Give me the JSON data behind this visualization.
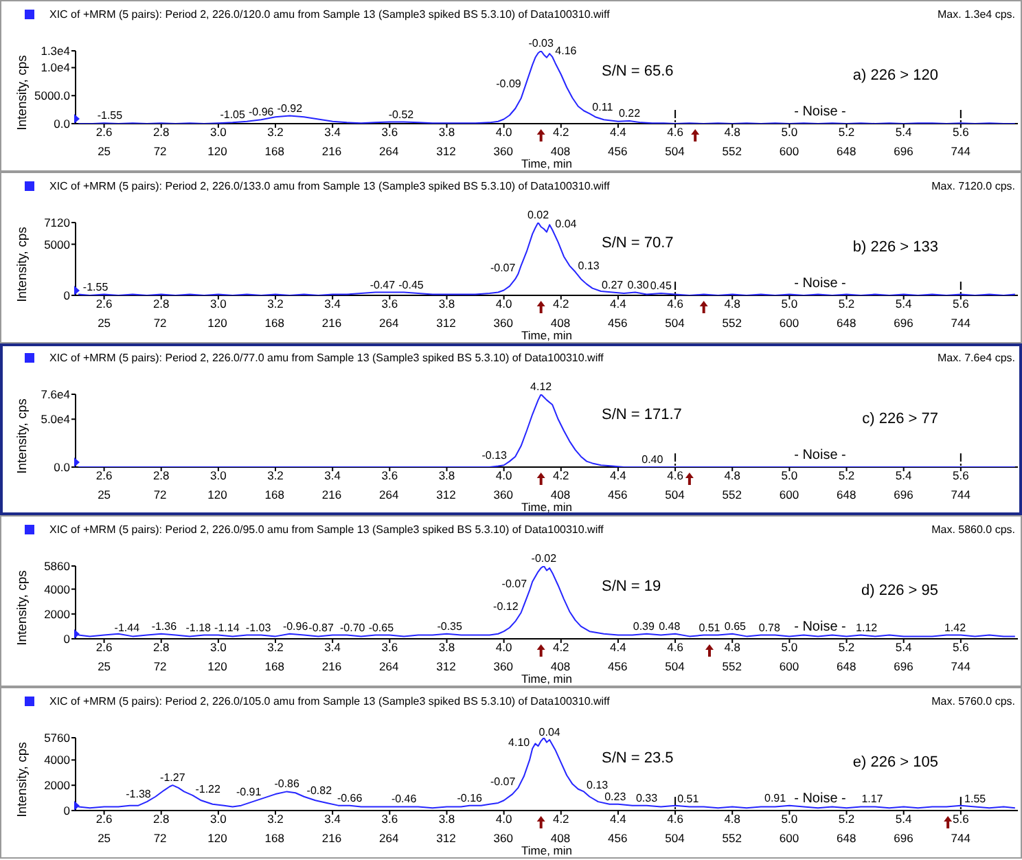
{
  "chart_data": [
    {
      "type": "line",
      "title": "XIC of +MRM (5 pairs): Period 2, 226.0/120.0 amu from Sample 13 (Sample3 spiked BS 5.3.10) of Data100310.wiff",
      "subtitle": "Max. 1.3e4 cps.",
      "xlabel": "Time, min",
      "ylabel": "Intensity, cps",
      "color": "#2626ff",
      "x": [
        2.51,
        2.56,
        2.6,
        2.65,
        2.7,
        2.75,
        2.8,
        2.85,
        2.9,
        2.95,
        3.0,
        3.05,
        3.1,
        3.15,
        3.2,
        3.25,
        3.3,
        3.35,
        3.4,
        3.45,
        3.5,
        3.55,
        3.6,
        3.65,
        3.7,
        3.75,
        3.8,
        3.85,
        3.9,
        3.95,
        3.98,
        4.0,
        4.02,
        4.04,
        4.06,
        4.07,
        4.08,
        4.1,
        4.11,
        4.12,
        4.13,
        4.14,
        4.15,
        4.16,
        4.17,
        4.18,
        4.2,
        4.22,
        4.24,
        4.26,
        4.28,
        4.3,
        4.32,
        4.35,
        4.4,
        4.44,
        4.48,
        4.52,
        4.56,
        4.6,
        4.65,
        4.7,
        4.75,
        4.8,
        4.85,
        4.9,
        4.95,
        5.0,
        5.05,
        5.1,
        5.15,
        5.2,
        5.25,
        5.3,
        5.35,
        5.4,
        5.45,
        5.5,
        5.55,
        5.6,
        5.65,
        5.7,
        5.75,
        5.79
      ],
      "values": [
        0,
        0,
        100,
        0,
        100,
        0,
        100,
        0,
        100,
        0,
        100,
        200,
        400,
        700,
        1200,
        1400,
        1200,
        800,
        400,
        200,
        100,
        200,
        300,
        300,
        200,
        100,
        100,
        100,
        100,
        200,
        400,
        800,
        1500,
        2700,
        4500,
        6000,
        7500,
        10500,
        11800,
        12600,
        13000,
        12300,
        11800,
        12500,
        11900,
        10800,
        8800,
        6500,
        4600,
        3100,
        2300,
        1800,
        1200,
        700,
        400,
        500,
        200,
        100,
        100,
        0,
        100,
        0,
        100,
        0,
        100,
        0,
        100,
        0,
        100,
        0,
        100,
        0,
        100,
        0,
        100,
        0,
        100,
        100,
        0,
        100,
        0,
        100,
        0,
        0
      ],
      "xlim": [
        2.5,
        5.8
      ],
      "xticks": [
        2.6,
        2.8,
        {
          "value": 3,
          "label": "3.0"
        },
        3.2,
        3.4,
        3.6,
        3.8,
        {
          "value": 4,
          "label": "4.0"
        },
        4.2,
        4.4,
        4.6,
        4.8,
        {
          "value": 5,
          "label": "5.0"
        },
        5.2,
        5.4,
        5.6
      ],
      "x2lim": [
        1,
        792
      ],
      "x2ticks": [
        25,
        72,
        120,
        168,
        216,
        264,
        312,
        360,
        408,
        456,
        504,
        552,
        600,
        648,
        696,
        744
      ],
      "ylim": [
        0,
        13000
      ],
      "yticks": [
        {
          "value": 0,
          "label": "0.0"
        },
        {
          "value": 5000,
          "label": "5000.0"
        },
        {
          "value": 10000,
          "label": "1.0e4"
        },
        {
          "value": 13000,
          "label": "1.3e4"
        }
      ],
      "annotations": [
        "S/N = 65.6",
        "a) 226 > 120",
        "- Noise -",
        {
          "text": "-1.55",
          "x": 2.62,
          "y": 100
        },
        {
          "text": "-1.05",
          "x": 3.05,
          "y": 200
        },
        {
          "text": "-0.96",
          "x": 3.15,
          "y": 700
        },
        {
          "text": "-0.92",
          "x": 3.25,
          "y": 1400
        },
        {
          "text": "-0.52",
          "x": 3.64,
          "y": 300
        },
        {
          "text": "-0.09",
          "x": 4.07,
          "y": 6000
        },
        {
          "text": "-0.03",
          "x": 4.13,
          "y": 13000
        },
        {
          "text": "4.16",
          "x": 4.17,
          "y": 11900
        },
        {
          "text": "0.11",
          "x": 4.3,
          "y": 1800
        },
        {
          "text": "0.22",
          "x": 4.44,
          "y": 500
        }
      ]
    },
    {
      "type": "line",
      "title": "XIC of +MRM (5 pairs): Period 2, 226.0/133.0 amu from Sample 13 (Sample3 spiked BS 5.3.10) of Data100310.wiff",
      "subtitle": "Max. 7120.0 cps.",
      "xlabel": "Time, min",
      "ylabel": "Intensity, cps",
      "color": "#2626ff",
      "x": [
        2.51,
        2.55,
        2.6,
        2.65,
        2.7,
        2.75,
        2.8,
        2.85,
        2.9,
        2.95,
        3.0,
        3.05,
        3.1,
        3.15,
        3.2,
        3.25,
        3.3,
        3.35,
        3.4,
        3.45,
        3.5,
        3.55,
        3.6,
        3.65,
        3.7,
        3.75,
        3.8,
        3.85,
        3.9,
        3.95,
        3.98,
        4.0,
        4.02,
        4.04,
        4.05,
        4.06,
        4.08,
        4.1,
        4.11,
        4.12,
        4.13,
        4.14,
        4.15,
        4.16,
        4.17,
        4.19,
        4.21,
        4.23,
        4.25,
        4.27,
        4.29,
        4.31,
        4.34,
        4.38,
        4.42,
        4.46,
        4.5,
        4.55,
        4.6,
        4.65,
        4.7,
        4.75,
        4.8,
        4.85,
        4.9,
        4.95,
        5.0,
        5.05,
        5.1,
        5.15,
        5.2,
        5.25,
        5.3,
        5.35,
        5.4,
        5.45,
        5.5,
        5.55,
        5.6,
        5.65,
        5.7,
        5.75,
        5.79
      ],
      "values": [
        100,
        0,
        100,
        0,
        100,
        0,
        100,
        0,
        100,
        0,
        100,
        0,
        100,
        0,
        100,
        0,
        100,
        0,
        100,
        100,
        200,
        300,
        300,
        300,
        200,
        100,
        100,
        100,
        100,
        200,
        300,
        500,
        900,
        1600,
        2100,
        2900,
        4300,
        6000,
        6600,
        7120,
        6700,
        6500,
        6200,
        6900,
        6400,
        5200,
        3800,
        2900,
        2300,
        1600,
        1100,
        700,
        400,
        300,
        200,
        300,
        100,
        200,
        100,
        0,
        100,
        0,
        100,
        0,
        100,
        0,
        100,
        0,
        100,
        0,
        100,
        0,
        100,
        0,
        100,
        0,
        100,
        0,
        100,
        0,
        100,
        0,
        100
      ],
      "xlim": [
        2.5,
        5.8
      ],
      "xticks": [
        2.6,
        2.8,
        {
          "value": 3,
          "label": "3.0"
        },
        3.2,
        3.4,
        3.6,
        3.8,
        {
          "value": 4,
          "label": "4.0"
        },
        4.2,
        4.4,
        4.6,
        4.8,
        {
          "value": 5,
          "label": "5.0"
        },
        5.2,
        5.4,
        5.6
      ],
      "x2lim": [
        1,
        792
      ],
      "x2ticks": [
        25,
        72,
        120,
        168,
        216,
        264,
        312,
        360,
        408,
        456,
        504,
        552,
        600,
        648,
        696,
        744
      ],
      "ylim": [
        0,
        7120
      ],
      "yticks": [
        0,
        5000,
        7120
      ],
      "annotations": [
        "S/N = 70.7",
        "b) 226 > 133",
        "- Noise -",
        {
          "text": "-1.55",
          "x": 2.57,
          "y": 100
        },
        {
          "text": "-0.47",
          "x": 3.575,
          "y": 300
        },
        {
          "text": "-0.45",
          "x": 3.675,
          "y": 300
        },
        {
          "text": "-0.07",
          "x": 4.05,
          "y": 2100
        },
        {
          "text": "0.02",
          "x": 4.12,
          "y": 7120
        },
        {
          "text": "0.04",
          "x": 4.17,
          "y": 6400
        },
        {
          "text": "0.13",
          "x": 4.25,
          "y": 2300
        },
        {
          "text": "0.27",
          "x": 4.38,
          "y": 300
        },
        {
          "text": "0.30",
          "x": 4.47,
          "y": 300
        },
        {
          "text": "0.45",
          "x": 4.55,
          "y": 200
        }
      ]
    },
    {
      "type": "line",
      "title": "XIC of +MRM (5 pairs): Period 2, 226.0/77.0 amu from Sample 13 (Sample3 spiked BS 5.3.10) of Data100310.wiff",
      "subtitle": "Max. 7.6e4 cps.",
      "xlabel": "Time, min",
      "ylabel": "Intensity, cps",
      "color": "#2626ff",
      "x": [
        2.51,
        2.6,
        2.7,
        2.8,
        2.9,
        3.0,
        3.1,
        3.2,
        3.3,
        3.4,
        3.5,
        3.6,
        3.7,
        3.8,
        3.85,
        3.9,
        3.95,
        3.98,
        4.0,
        4.02,
        4.04,
        4.06,
        4.08,
        4.1,
        4.12,
        4.13,
        4.14,
        4.15,
        4.17,
        4.19,
        4.21,
        4.23,
        4.25,
        4.27,
        4.29,
        4.31,
        4.34,
        4.38,
        4.42,
        4.46,
        4.5,
        4.6,
        4.7,
        4.8,
        4.9,
        5.0,
        5.1,
        5.2,
        5.3,
        5.4,
        5.5,
        5.6,
        5.7,
        5.79
      ],
      "values": [
        0,
        0,
        0,
        0,
        0,
        0,
        0,
        0,
        0,
        0,
        0,
        0,
        0,
        0,
        0,
        0,
        0,
        1000,
        2000,
        6000,
        11000,
        22000,
        38000,
        55000,
        70000,
        76000,
        73000,
        70000,
        65000,
        50000,
        38000,
        27000,
        18000,
        11000,
        6000,
        4000,
        2000,
        1000,
        0,
        0,
        0,
        0,
        0,
        0,
        0,
        0,
        0,
        0,
        0,
        0,
        0,
        0,
        0,
        0
      ],
      "xlim": [
        2.5,
        5.8
      ],
      "xticks": [
        2.6,
        2.8,
        {
          "value": 3,
          "label": "3.0"
        },
        3.2,
        3.4,
        3.6,
        3.8,
        {
          "value": 4,
          "label": "4.0"
        },
        4.2,
        4.4,
        4.6,
        4.8,
        {
          "value": 5,
          "label": "5.0"
        },
        5.2,
        5.4,
        5.6
      ],
      "x2lim": [
        1,
        792
      ],
      "x2ticks": [
        25,
        72,
        120,
        168,
        216,
        264,
        312,
        360,
        408,
        456,
        504,
        552,
        600,
        648,
        696,
        744
      ],
      "ylim": [
        0,
        76000
      ],
      "yticks": [
        {
          "value": 0,
          "label": "0.0"
        },
        {
          "value": 50000,
          "label": "5.0e4"
        },
        {
          "value": 76000,
          "label": "7.6e4"
        }
      ],
      "annotations": [
        "S/N = 171.7",
        "c) 226 > 77",
        "- Noise -",
        {
          "text": "-0.13",
          "x": 4.02,
          "y": 6000
        },
        {
          "text": "4.12",
          "x": 4.13,
          "y": 76000
        },
        {
          "text": "0.40",
          "x": 4.52,
          "y": 0
        }
      ]
    },
    {
      "type": "line",
      "title": "XIC of +MRM (5 pairs): Period 2, 226.0/95.0 amu from Sample 13 (Sample3 spiked BS 5.3.10) of Data100310.wiff",
      "subtitle": "Max. 5860.0 cps.",
      "xlabel": "Time, min",
      "ylabel": "Intensity, cps",
      "color": "#2626ff",
      "x": [
        2.51,
        2.55,
        2.6,
        2.65,
        2.7,
        2.75,
        2.8,
        2.85,
        2.9,
        2.95,
        3.0,
        3.05,
        3.1,
        3.15,
        3.2,
        3.25,
        3.3,
        3.35,
        3.4,
        3.45,
        3.5,
        3.55,
        3.6,
        3.65,
        3.7,
        3.75,
        3.8,
        3.85,
        3.9,
        3.95,
        3.98,
        4.0,
        4.02,
        4.04,
        4.06,
        4.08,
        4.09,
        4.1,
        4.12,
        4.13,
        4.14,
        4.15,
        4.16,
        4.17,
        4.19,
        4.21,
        4.23,
        4.25,
        4.27,
        4.3,
        4.35,
        4.4,
        4.45,
        4.5,
        4.55,
        4.6,
        4.65,
        4.7,
        4.75,
        4.8,
        4.85,
        4.9,
        4.95,
        5.0,
        5.05,
        5.1,
        5.15,
        5.2,
        5.25,
        5.3,
        5.35,
        5.4,
        5.45,
        5.5,
        5.55,
        5.6,
        5.65,
        5.7,
        5.75,
        5.79
      ],
      "values": [
        300,
        200,
        300,
        400,
        200,
        300,
        400,
        300,
        200,
        300,
        300,
        200,
        300,
        300,
        200,
        400,
        300,
        200,
        300,
        300,
        200,
        300,
        300,
        200,
        300,
        300,
        400,
        300,
        300,
        300,
        400,
        600,
        900,
        1400,
        2100,
        3300,
        3900,
        4600,
        5400,
        5700,
        5860,
        5500,
        5700,
        5300,
        4300,
        3200,
        2200,
        1500,
        1000,
        600,
        400,
        300,
        300,
        400,
        300,
        400,
        200,
        300,
        300,
        400,
        200,
        300,
        300,
        200,
        300,
        200,
        300,
        200,
        300,
        200,
        300,
        200,
        200,
        200,
        300,
        300,
        200,
        300,
        200,
        200
      ],
      "xlim": [
        2.5,
        5.8
      ],
      "xticks": [
        2.6,
        2.8,
        {
          "value": 3,
          "label": "3.0"
        },
        3.2,
        3.4,
        3.6,
        3.8,
        {
          "value": 4,
          "label": "4.0"
        },
        4.2,
        4.4,
        4.6,
        4.8,
        {
          "value": 5,
          "label": "5.0"
        },
        5.2,
        5.4,
        5.6
      ],
      "x2lim": [
        1,
        792
      ],
      "x2ticks": [
        25,
        72,
        120,
        168,
        216,
        264,
        312,
        360,
        408,
        456,
        504,
        552,
        600,
        648,
        696,
        744
      ],
      "ylim": [
        0,
        5860
      ],
      "yticks": [
        0,
        2000,
        4000,
        5860
      ],
      "annotations": [
        "S/N = 19",
        "d) 226 > 95",
        "- Noise -",
        {
          "text": "-1.44",
          "x": 2.68,
          "y": 300
        },
        {
          "text": "-1.36",
          "x": 2.81,
          "y": 400
        },
        {
          "text": "-1.18",
          "x": 2.93,
          "y": 300
        },
        {
          "text": "-1.14",
          "x": 3.03,
          "y": 300
        },
        {
          "text": "-1.03",
          "x": 3.14,
          "y": 300
        },
        {
          "text": "-0.96",
          "x": 3.27,
          "y": 400
        },
        {
          "text": "-0.87",
          "x": 3.36,
          "y": 300
        },
        {
          "text": "-0.70",
          "x": 3.47,
          "y": 300
        },
        {
          "text": "-0.65",
          "x": 3.57,
          "y": 300
        },
        {
          "text": "-0.35",
          "x": 3.81,
          "y": 400
        },
        {
          "text": "-0.12",
          "x": 4.06,
          "y": 2100
        },
        {
          "text": "-0.07",
          "x": 4.09,
          "y": 3900
        },
        {
          "text": "-0.02",
          "x": 4.14,
          "y": 5860
        },
        {
          "text": "0.39",
          "x": 4.49,
          "y": 400
        },
        {
          "text": "0.48",
          "x": 4.58,
          "y": 400
        },
        {
          "text": "0.51",
          "x": 4.72,
          "y": 300
        },
        {
          "text": "0.65",
          "x": 4.81,
          "y": 400
        },
        {
          "text": "0.78",
          "x": 4.93,
          "y": 300
        },
        {
          "text": "1.12",
          "x": 5.27,
          "y": 300
        },
        {
          "text": "1.42",
          "x": 5.58,
          "y": 300
        }
      ]
    },
    {
      "type": "line",
      "title": "XIC of +MRM (5 pairs): Period 2, 226.0/105.0 amu from Sample 13 (Sample3 spiked BS 5.3.10) of Data100310.wiff",
      "subtitle": "Max. 5760.0 cps.",
      "xlabel": "Time, min",
      "ylabel": "Intensity, cps",
      "color": "#2626ff",
      "x": [
        2.51,
        2.55,
        2.6,
        2.65,
        2.69,
        2.72,
        2.75,
        2.78,
        2.81,
        2.83,
        2.84,
        2.86,
        2.88,
        2.91,
        2.94,
        2.98,
        3.02,
        3.05,
        3.08,
        3.12,
        3.16,
        3.2,
        3.24,
        3.27,
        3.3,
        3.34,
        3.38,
        3.42,
        3.46,
        3.5,
        3.55,
        3.6,
        3.65,
        3.7,
        3.75,
        3.8,
        3.85,
        3.88,
        3.92,
        3.95,
        3.98,
        4.0,
        4.03,
        4.05,
        4.07,
        4.09,
        4.1,
        4.11,
        4.12,
        4.13,
        4.14,
        4.15,
        4.16,
        4.18,
        4.2,
        4.22,
        4.24,
        4.26,
        4.28,
        4.3,
        4.33,
        4.37,
        4.4,
        4.45,
        4.5,
        4.55,
        4.6,
        4.65,
        4.7,
        4.75,
        4.8,
        4.85,
        4.9,
        4.95,
        5.0,
        5.05,
        5.1,
        5.15,
        5.2,
        5.25,
        5.3,
        5.35,
        5.4,
        5.45,
        5.5,
        5.55,
        5.6,
        5.65,
        5.7,
        5.75,
        5.79
      ],
      "values": [
        300,
        200,
        300,
        300,
        400,
        400,
        700,
        1100,
        1600,
        1900,
        2000,
        1800,
        1500,
        1200,
        800,
        500,
        400,
        300,
        400,
        700,
        1000,
        1300,
        1500,
        1400,
        1100,
        800,
        600,
        400,
        400,
        300,
        300,
        300,
        300,
        300,
        200,
        300,
        300,
        400,
        400,
        500,
        600,
        800,
        1300,
        1800,
        2700,
        4000,
        4900,
        5300,
        5100,
        5500,
        5760,
        5400,
        5600,
        4800,
        3800,
        2800,
        2100,
        1700,
        1500,
        1100,
        700,
        500,
        500,
        400,
        400,
        300,
        400,
        300,
        300,
        200,
        300,
        200,
        300,
        300,
        400,
        300,
        200,
        300,
        200,
        300,
        300,
        200,
        300,
        200,
        300,
        300,
        400,
        300,
        200,
        300,
        200
      ],
      "xlim": [
        2.5,
        5.8
      ],
      "xticks": [
        2.6,
        2.8,
        {
          "value": 3,
          "label": "3.0"
        },
        3.2,
        3.4,
        3.6,
        3.8,
        {
          "value": 4,
          "label": "4.0"
        },
        4.2,
        4.4,
        4.6,
        4.8,
        {
          "value": 5,
          "label": "5.0"
        },
        5.2,
        5.4,
        5.6
      ],
      "x2lim": [
        1,
        792
      ],
      "x2ticks": [
        25,
        72,
        120,
        168,
        216,
        264,
        312,
        360,
        408,
        456,
        504,
        552,
        600,
        648,
        696,
        744
      ],
      "ylim": [
        0,
        5760
      ],
      "yticks": [
        0,
        2000,
        4000,
        5760
      ],
      "annotations": [
        "S/N = 23.5",
        "e) 226 > 105",
        "- Noise -",
        {
          "text": "-1.38",
          "x": 2.72,
          "y": 700
        },
        {
          "text": "-1.27",
          "x": 2.84,
          "y": 2000
        },
        {
          "text": "-1.22",
          "x": 2.91,
          "y": 1200
        },
        {
          "text": "-0.91",
          "x": 3.16,
          "y": 1000
        },
        {
          "text": "-0.86",
          "x": 3.24,
          "y": 1500
        },
        {
          "text": "-0.82",
          "x": 3.3,
          "y": 1100
        },
        {
          "text": "-0.66",
          "x": 3.46,
          "y": 400
        },
        {
          "text": "-0.46",
          "x": 3.65,
          "y": 300
        },
        {
          "text": "-0.16",
          "x": 3.88,
          "y": 400
        },
        {
          "text": "-0.07",
          "x": 4.05,
          "y": 1800
        },
        {
          "text": "4.10",
          "x": 4.1,
          "y": 4900
        },
        {
          "text": "0.04",
          "x": 4.16,
          "y": 5600
        },
        {
          "text": "0.13",
          "x": 4.28,
          "y": 1500
        },
        {
          "text": "0.23",
          "x": 4.39,
          "y": 500
        },
        {
          "text": "0.33",
          "x": 4.5,
          "y": 400
        },
        {
          "text": "0.51",
          "x": 4.645,
          "y": 300
        },
        {
          "text": "0.91",
          "x": 4.95,
          "y": 400
        },
        {
          "text": "1.17",
          "x": 5.29,
          "y": 300
        },
        {
          "text": "1.55",
          "x": 5.65,
          "y": 300
        }
      ]
    }
  ]
}
